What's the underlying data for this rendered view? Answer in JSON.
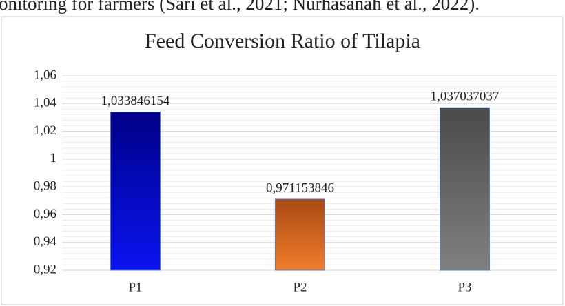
{
  "context_text": "onitoring for farmers (Sari et al., 2021; Nurhasanah et al., 2022).",
  "chart_data": {
    "type": "bar",
    "title": "Feed Conversion Ratio of Tilapia",
    "categories": [
      "P1",
      "P2",
      "P3"
    ],
    "values": [
      1.033846154,
      0.971153846,
      1.037037037
    ],
    "value_labels": [
      "1,033846154",
      "0,971153846",
      "1,037037037"
    ],
    "bar_gradients": [
      [
        "#000088",
        "#0a14f0"
      ],
      [
        "#a84a14",
        "#f07c2a"
      ],
      [
        "#4a4a4a",
        "#808080"
      ]
    ],
    "ylim": [
      0.92,
      1.06
    ],
    "yticks": [
      {
        "value": 0.92,
        "label": "0,92"
      },
      {
        "value": 0.94,
        "label": "0,94"
      },
      {
        "value": 0.96,
        "label": "0,96"
      },
      {
        "value": 0.98,
        "label": "0,98"
      },
      1,
      {
        "value": 1.02,
        "label": "1,02"
      },
      {
        "value": 1.04,
        "label": "1,04"
      },
      {
        "value": 1.06,
        "label": "1,06"
      }
    ],
    "grid": true
  }
}
